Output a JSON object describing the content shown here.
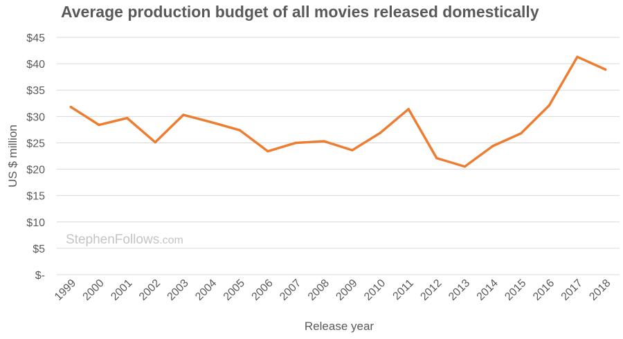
{
  "chart_data": {
    "type": "line",
    "title": "Average production budget of all movies released domestically",
    "xlabel": "Release year",
    "ylabel": "US $ million",
    "categories": [
      "1999",
      "2000",
      "2001",
      "2002",
      "2003",
      "2004",
      "2005",
      "2006",
      "2007",
      "2008",
      "2009",
      "2010",
      "2011",
      "2012",
      "2013",
      "2014",
      "2015",
      "2016",
      "2017",
      "2018"
    ],
    "series": [
      {
        "values": [
          31.8,
          28.4,
          29.7,
          25.1,
          30.3,
          28.9,
          27.4,
          23.4,
          25.0,
          25.3,
          23.6,
          26.9,
          31.4,
          22.1,
          20.5,
          24.4,
          26.8,
          32.1,
          41.3,
          38.9
        ]
      }
    ],
    "ylim": [
      0,
      45
    ],
    "y_ticks": [
      {
        "value": 45,
        "label": "$45"
      },
      {
        "value": 40,
        "label": "$40"
      },
      {
        "value": 35,
        "label": "$35"
      },
      {
        "value": 30,
        "label": "$30"
      },
      {
        "value": 25,
        "label": "$25"
      },
      {
        "value": 20,
        "label": "$20"
      },
      {
        "value": 15,
        "label": "$15"
      },
      {
        "value": 10,
        "label": "$10"
      },
      {
        "value": 5,
        "label": "$5"
      },
      {
        "value": 0,
        "label": "$-"
      }
    ],
    "grid": true,
    "legend": "none",
    "line_color": "#ED7D31"
  },
  "watermark": {
    "main": "StephenFollows",
    "suffix": ".com"
  }
}
